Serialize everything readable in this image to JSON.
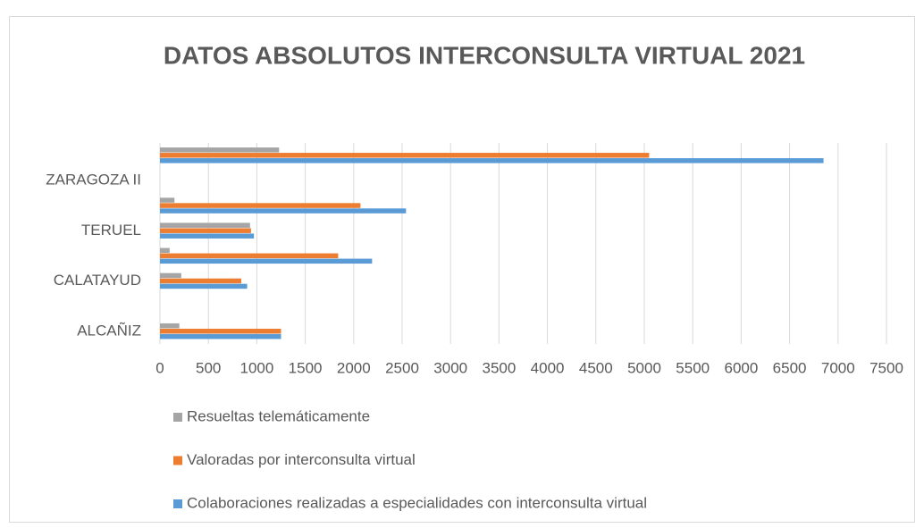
{
  "chart_data": {
    "type": "bar",
    "orientation": "horizontal",
    "title": "DATOS  ABSOLUTOS INTERCONSULTA VIRTUAL 2021",
    "categories": [
      null,
      "ZARAGOZA II",
      null,
      "TERUEL",
      null,
      "CALATAYUD",
      null,
      "ALCAÑIZ"
    ],
    "series": [
      {
        "name": "Resueltas telemáticamente",
        "color": "#a5a5a5",
        "values": [
          1230,
          null,
          150,
          930,
          100,
          220,
          null,
          200
        ]
      },
      {
        "name": "Valoradas por interconsulta virtual",
        "color": "#ed7d31",
        "values": [
          5050,
          null,
          2070,
          940,
          1840,
          840,
          null,
          1250
        ]
      },
      {
        "name": "Colaboraciones realizadas a especialidades con interconsulta virtual",
        "color": "#5b9bd5",
        "values": [
          6850,
          null,
          2540,
          970,
          2190,
          900,
          null,
          1250
        ]
      }
    ],
    "xlim": [
      0,
      7500
    ],
    "xticks": [
      0,
      500,
      1000,
      1500,
      2000,
      2500,
      3000,
      3500,
      4000,
      4500,
      5000,
      5500,
      6000,
      6500,
      7000,
      7500
    ],
    "grid": true,
    "legend": "bottom"
  }
}
